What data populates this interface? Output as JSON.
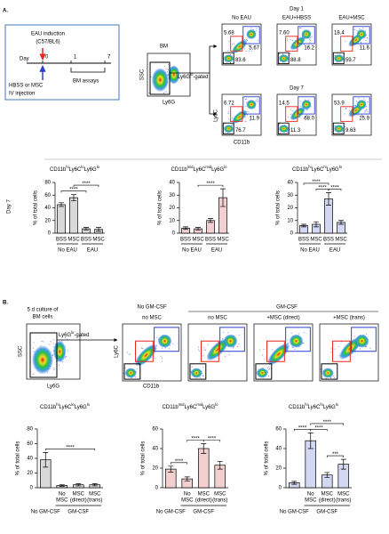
{
  "panel_a": {
    "label": "A.",
    "timeline": {
      "induction": [
        "EAU induction",
        "(C57/BL6)"
      ],
      "day": "Day",
      "days": [
        "0",
        "1",
        "7"
      ],
      "treatment": [
        "HBSS or MSC",
        "IV injection"
      ],
      "assay": "BM assays"
    },
    "bm_plot": {
      "title": "BM",
      "y_label": "SSC",
      "x_label": "Ly6G",
      "gate": [
        "Ly6G",
        "lo",
        "-gated"
      ]
    },
    "conditions": [
      "No EAU",
      "EAU+HBSS",
      "EAU+MSC"
    ],
    "rows": [
      {
        "label": "Day 1",
        "plots": [
          [
            "5.68",
            "5.67",
            "83.6"
          ],
          [
            "7.60",
            "16.2",
            "88.8"
          ],
          [
            "18.4",
            "11.6",
            "59.7"
          ]
        ]
      },
      {
        "label": "Day 7",
        "plots": [
          [
            "6.72",
            "11.9",
            "76.7"
          ],
          [
            "14.5",
            "68.0",
            "11.3"
          ],
          [
            "53.9",
            "25.9",
            "9.63"
          ]
        ]
      }
    ],
    "y_label": "Ly6C",
    "x_label": "CD11b",
    "bar_row_label": "Day 7"
  },
  "panel_b": {
    "label": "B.",
    "culture": [
      "5 d culture of",
      "BM cells"
    ],
    "bm_plot": {
      "y_label": "SSC",
      "x_label": "Ly6G",
      "gate": [
        "Ly6G",
        "lo",
        "-gated"
      ]
    },
    "groups": [
      "No GM-CSF",
      "GM-CSF"
    ],
    "conditions": [
      "no MSC",
      "no MSC",
      "+MSC (direct)",
      "+MSC (trans)"
    ],
    "y_label": "Ly6C",
    "x_label": "CD11b"
  },
  "chart_data": [
    {
      "type": "bar",
      "title": [
        "CD11b",
        "hi",
        "Ly6C",
        "lo",
        "Ly6G",
        "lo"
      ],
      "title_color": "#000000",
      "y_label": "% of total cells",
      "categories": [
        "BSS",
        "MSC",
        "BSS",
        "MSC"
      ],
      "groups": [
        {
          "label": "No EAU",
          "span": [
            0,
            1
          ]
        },
        {
          "label": "EAU",
          "span": [
            2,
            3
          ]
        }
      ],
      "values": [
        45,
        56,
        7,
        6
      ],
      "errors": [
        3,
        5,
        2,
        3
      ],
      "ylim": [
        0,
        80
      ],
      "yticks": [
        0,
        20,
        40,
        60,
        80
      ],
      "bar_color": "#d9d9d9",
      "significance": [
        {
          "label": "****",
          "between": [
            0,
            2
          ]
        },
        {
          "label": "****",
          "between": [
            1,
            3
          ]
        }
      ]
    },
    {
      "type": "bar",
      "title": [
        "CD11b",
        "mid",
        "Ly6C",
        "mid",
        "Ly6G",
        "lo"
      ],
      "title_color": "#e8251f",
      "y_label": "% of total cells",
      "categories": [
        "BSS",
        "MSC",
        "BSS",
        "MSC"
      ],
      "groups": [
        {
          "label": "No EAU",
          "span": [
            0,
            1
          ]
        },
        {
          "label": "EAU",
          "span": [
            2,
            3
          ]
        }
      ],
      "values": [
        4,
        3.5,
        10,
        28
      ],
      "errors": [
        1,
        1,
        1.5,
        7
      ],
      "ylim": [
        0,
        40
      ],
      "yticks": [
        0,
        10,
        20,
        30,
        40
      ],
      "bar_color": "#f2d0d0",
      "significance": [
        {
          "label": "****",
          "between": [
            1,
            3
          ]
        }
      ]
    },
    {
      "type": "bar",
      "title": [
        "CD11b",
        "hi",
        "Ly6C",
        "hi",
        "Ly6G",
        "lo"
      ],
      "title_color": "#2b3fcf",
      "y_label": "% of total cells",
      "categories": [
        "BSS",
        "MSC",
        "BSS",
        "MSC"
      ],
      "groups": [
        {
          "label": "No EAU",
          "span": [
            0,
            1
          ]
        },
        {
          "label": "EAU",
          "span": [
            2,
            3
          ]
        }
      ],
      "values": [
        6,
        7,
        27,
        8.5
      ],
      "errors": [
        1,
        2,
        5,
        1.5
      ],
      "ylim": [
        0,
        40
      ],
      "yticks": [
        0,
        10,
        20,
        30,
        40
      ],
      "bar_color": "#d3d8f2",
      "significance": [
        {
          "label": "****",
          "between": [
            1,
            2
          ]
        },
        {
          "label": "****",
          "between": [
            2,
            3
          ]
        },
        {
          "label": "****",
          "between": [
            0,
            2
          ]
        }
      ]
    },
    {
      "type": "bar",
      "title": [
        "CD11b",
        "hi",
        "Ly6C",
        "lo",
        "Ly6G",
        "lo"
      ],
      "title_color": "#000000",
      "y_label": "% of total cells",
      "categories": [
        null,
        [
          "No",
          "MSC"
        ],
        [
          "MSC",
          "(direct)"
        ],
        [
          "MSC",
          "(trans)"
        ]
      ],
      "groups": [
        {
          "label": "No GM-CSF",
          "span": [
            0,
            0
          ]
        },
        {
          "label": "GM-CSF",
          "span": [
            1,
            3
          ]
        }
      ],
      "values": [
        38,
        3,
        4,
        4
      ],
      "errors": [
        10,
        1,
        1.5,
        1.5
      ],
      "ylim": [
        0,
        80
      ],
      "yticks": [
        0,
        20,
        40,
        60,
        80
      ],
      "bar_color": "#d9d9d9",
      "significance": [
        {
          "label": "****",
          "between": [
            0,
            3
          ]
        }
      ]
    },
    {
      "type": "bar",
      "title": [
        "CD11b",
        "mid",
        "Ly6C",
        "mid",
        "Ly6G",
        "lo"
      ],
      "title_color": "#e8251f",
      "y_label": "% of total cells",
      "categories": [
        null,
        [
          "No",
          "MSC"
        ],
        [
          "MSC",
          "(direct)"
        ],
        [
          "MSC",
          "(trans)"
        ]
      ],
      "groups": [
        {
          "label": "No GM-CSF",
          "span": [
            0,
            0
          ]
        },
        {
          "label": "GM-CSF",
          "span": [
            1,
            3
          ]
        }
      ],
      "values": [
        19,
        9,
        40,
        23
      ],
      "errors": [
        3,
        2,
        5,
        4
      ],
      "ylim": [
        0,
        60
      ],
      "yticks": [
        0,
        20,
        40,
        60
      ],
      "bar_color": "#f2d0d0",
      "significance": [
        {
          "label": "****",
          "between": [
            0,
            1
          ]
        },
        {
          "label": "****",
          "between": [
            2,
            3
          ]
        },
        {
          "label": "****",
          "between": [
            1,
            2
          ]
        }
      ]
    },
    {
      "type": "bar",
      "title": [
        "CD11b",
        "hi",
        "Ly6C",
        "hi",
        "Ly6G",
        "lo"
      ],
      "title_color": "#2b3fcf",
      "y_label": "% of total cells",
      "categories": [
        null,
        [
          "No",
          "MSC"
        ],
        [
          "MSC",
          "(direct)"
        ],
        [
          "MSC",
          "(trans)"
        ]
      ],
      "groups": [
        {
          "label": "No GM-CSF",
          "span": [
            0,
            0
          ]
        },
        {
          "label": "GM-CSF",
          "span": [
            1,
            3
          ]
        }
      ],
      "values": [
        5,
        48,
        13,
        24
      ],
      "errors": [
        1.5,
        8,
        2.5,
        5
      ],
      "ylim": [
        0,
        60
      ],
      "yticks": [
        0,
        20,
        40,
        60
      ],
      "bar_color": "#d3d8f2",
      "significance": [
        {
          "label": "****",
          "between": [
            0,
            1
          ]
        },
        {
          "label": "****",
          "between": [
            1,
            2
          ]
        },
        {
          "label": "***",
          "between": [
            2,
            3
          ]
        },
        {
          "label": "****",
          "between": [
            1,
            3
          ]
        }
      ]
    }
  ]
}
